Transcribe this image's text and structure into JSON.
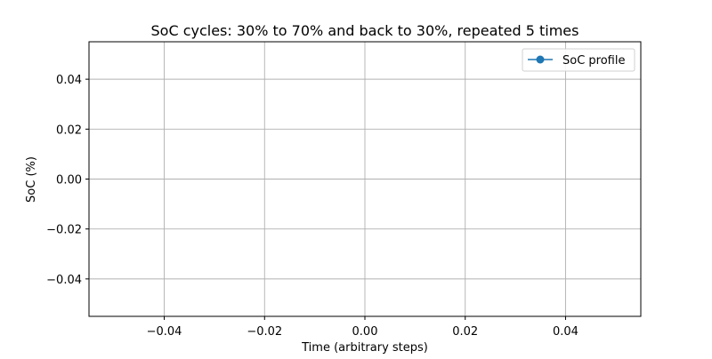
{
  "chart_data": {
    "type": "line",
    "title": "SoC cycles: 30% to 70% and back to 30%, repeated 5 times",
    "xlabel": "Time (arbitrary steps)",
    "ylabel": "SoC (%)",
    "xlim": [
      -0.055,
      0.055
    ],
    "ylim": [
      -0.055,
      0.055
    ],
    "xticks": [
      -0.04,
      -0.02,
      0.0,
      0.02,
      0.04
    ],
    "xtick_labels": [
      "−0.04",
      "−0.02",
      "0.00",
      "0.02",
      "0.04"
    ],
    "yticks": [
      -0.04,
      -0.02,
      0.0,
      0.02,
      0.04
    ],
    "ytick_labels": [
      "−0.04",
      "−0.02",
      "0.00",
      "0.02",
      "0.04"
    ],
    "grid": true,
    "legend_position": "top-right",
    "series": [
      {
        "name": "SoC profile",
        "color": "#1f77b4",
        "marker": "circle",
        "x": [],
        "y": []
      }
    ]
  }
}
